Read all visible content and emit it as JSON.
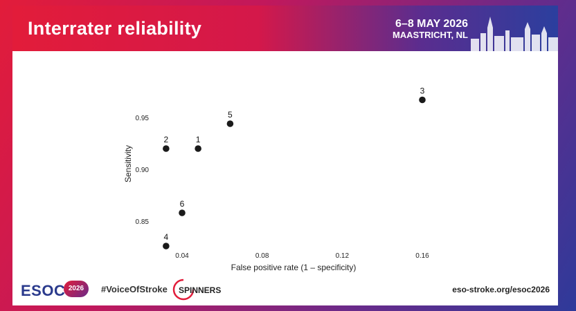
{
  "slide": {
    "title": "Interrater reliability",
    "event_dates": "6–8 MAY 2026",
    "event_place": "MAASTRICHT, NL"
  },
  "footer": {
    "logo_text": "ESOC",
    "logo_year": "2026",
    "hashtag": "#VoiceOfStroke",
    "sponsor": "SPINNERS",
    "url": "eso-stroke.org/esoc2026"
  },
  "colors": {
    "brand_red": "#e21c3a",
    "brand_blue": "#2b3f9e",
    "point": "#1a1a1a"
  },
  "chart_data": {
    "type": "scatter",
    "title": "",
    "xlabel": "False positive rate (1 – specificity)",
    "ylabel": "Sensitivity",
    "xlim": [
      0.03,
      0.17
    ],
    "ylim": [
      0.82,
      0.99
    ],
    "xticks": [
      0.04,
      0.08,
      0.12,
      0.16
    ],
    "xtick_labels": [
      "0.04",
      "0.08",
      "0.12",
      "0.16"
    ],
    "yticks": [
      0.85,
      0.9,
      0.95
    ],
    "ytick_labels": [
      "0.85",
      "0.90",
      "0.95"
    ],
    "grid": false,
    "points": [
      {
        "label": "1",
        "x": 0.048,
        "y": 0.92
      },
      {
        "label": "2",
        "x": 0.032,
        "y": 0.92
      },
      {
        "label": "3",
        "x": 0.16,
        "y": 0.967
      },
      {
        "label": "4",
        "x": 0.032,
        "y": 0.826
      },
      {
        "label": "5",
        "x": 0.064,
        "y": 0.944
      },
      {
        "label": "6",
        "x": 0.04,
        "y": 0.858
      }
    ]
  }
}
